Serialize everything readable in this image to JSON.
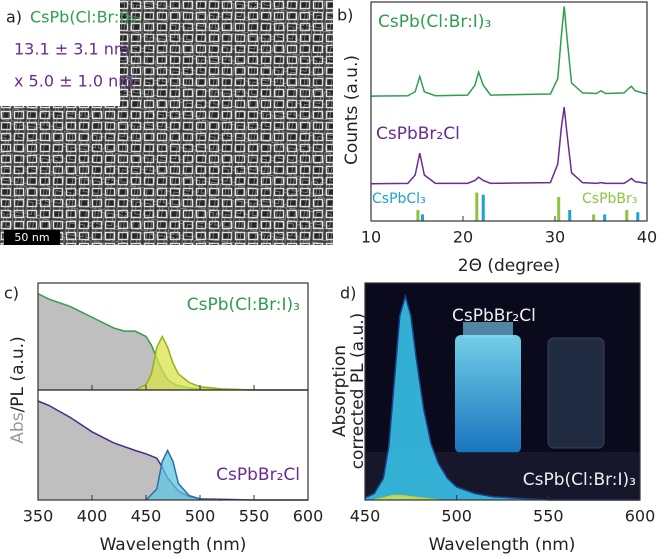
{
  "tem_image": {
    "panel_label": "a)",
    "composition": "CsPb(Cl:Br:I)₃",
    "size_length": "13.1 ± 3.1 nm",
    "size_width": "x 5.0 ± 1.0 nm",
    "scale_bar": "50 nm"
  },
  "chart_data": [
    {
      "type": "line",
      "panel_label": "b)",
      "xlabel": "2Θ (degree)",
      "ylabel": "Counts (a.u.)",
      "xlim": [
        10,
        40
      ],
      "xticks": [
        10,
        20,
        30,
        40
      ],
      "ylim": [
        0,
        10
      ],
      "series": [
        {
          "name": "CsPb(Cl:Br:I)₃",
          "color": "#2f9e4f",
          "x": [
            10,
            14,
            14.8,
            15.3,
            15.8,
            17,
            20.5,
            21.3,
            21.7,
            22.2,
            23,
            29.5,
            30.3,
            30.7,
            31,
            31.3,
            31.8,
            33,
            34.5,
            35,
            35.5,
            37.5,
            38,
            38.3,
            38.7,
            40
          ],
          "values": [
            5.7,
            5.72,
            5.9,
            6.6,
            5.9,
            5.72,
            5.75,
            6.2,
            6.8,
            6.2,
            5.75,
            5.8,
            6.5,
            8.5,
            9.8,
            8.4,
            6.3,
            5.85,
            5.82,
            5.95,
            5.82,
            5.85,
            6.05,
            6.15,
            5.95,
            5.8
          ]
        },
        {
          "name": "CsPbBr₂Cl",
          "color": "#6a2c91",
          "x": [
            10,
            14,
            14.8,
            15.3,
            15.8,
            17,
            20.5,
            21.3,
            21.7,
            22.2,
            23,
            29.5,
            30.3,
            30.7,
            31,
            31.3,
            31.8,
            33,
            34.5,
            35,
            35.5,
            37.5,
            38,
            38.3,
            38.7,
            40
          ],
          "values": [
            1.7,
            1.72,
            2.1,
            3.1,
            2.1,
            1.72,
            1.72,
            1.85,
            2.0,
            1.85,
            1.72,
            1.75,
            2.6,
            4.3,
            5.2,
            4.0,
            2.2,
            1.75,
            1.72,
            1.75,
            1.72,
            1.72,
            1.85,
            1.95,
            1.8,
            1.72
          ]
        }
      ],
      "reference_lines": [
        {
          "name": "CsPbCl₃",
          "color": "#1aa3d4",
          "x": [
            15.6,
            22.2,
            31.6,
            35.4,
            39.0
          ],
          "values": [
            0.3,
            1.2,
            0.5,
            0.3,
            0.4
          ]
        },
        {
          "name": "CsPbBr₃",
          "color": "#8cc43e",
          "x": [
            15.1,
            21.5,
            30.4,
            34.2,
            37.8
          ],
          "values": [
            0.5,
            1.3,
            1.1,
            0.3,
            0.5
          ]
        }
      ]
    },
    {
      "type": "area",
      "panel_label": "c)",
      "label": "CsPb(Cl:Br:I)₃",
      "label_color": "#2f9e4f",
      "ylabel": [
        "Abs",
        "/PL (a.u.)"
      ],
      "xlim": [
        350,
        600
      ],
      "ylim": [
        0,
        1
      ],
      "series": [
        {
          "color": "#2f9e4f",
          "fill": "#a9a9a9",
          "x": [
            350,
            360,
            380,
            400,
            420,
            430,
            440,
            450,
            455,
            460,
            465,
            470,
            475,
            480,
            490,
            500,
            550,
            600
          ],
          "values": [
            0.9,
            0.85,
            0.78,
            0.68,
            0.58,
            0.55,
            0.55,
            0.5,
            0.42,
            0.3,
            0.18,
            0.1,
            0.06,
            0.04,
            0.02,
            0.01,
            0,
            0
          ]
        },
        {
          "color": "#8fb31a",
          "fill": "#dbe34a",
          "x": [
            440,
            450,
            455,
            460,
            465,
            470,
            475,
            480,
            490,
            500,
            520,
            550
          ],
          "values": [
            0,
            0.05,
            0.15,
            0.4,
            0.5,
            0.4,
            0.25,
            0.15,
            0.07,
            0.03,
            0.01,
            0
          ]
        }
      ]
    },
    {
      "type": "area",
      "label": "CsPbBr₂Cl",
      "label_color": "#6a2c91",
      "xlabel": "Wavelength (nm)",
      "xlim": [
        350,
        600
      ],
      "xticks": [
        350,
        400,
        450,
        500,
        550,
        600
      ],
      "ylim": [
        0,
        1
      ],
      "series": [
        {
          "color": "#4b2a8c",
          "fill": "#a9a9a9",
          "x": [
            350,
            360,
            380,
            400,
            420,
            440,
            450,
            460,
            465,
            470,
            480,
            490,
            500,
            550,
            600
          ],
          "values": [
            0.9,
            0.86,
            0.75,
            0.62,
            0.52,
            0.45,
            0.42,
            0.38,
            0.3,
            0.2,
            0.08,
            0.03,
            0.01,
            0,
            0
          ]
        },
        {
          "color": "#2b6fa8",
          "fill": "#5fc4e0",
          "x": [
            450,
            460,
            465,
            470,
            475,
            480,
            490,
            500,
            520
          ],
          "values": [
            0,
            0.1,
            0.35,
            0.45,
            0.35,
            0.15,
            0.04,
            0.01,
            0
          ]
        }
      ]
    },
    {
      "type": "area",
      "panel_label": "d)",
      "xlabel": "Wavelength (nm)",
      "ylabel": [
        "Absorption",
        "corrected PL (a.u.)"
      ],
      "annotations": [
        "CsPbBr₂Cl",
        "CsPb(Cl:Br:I)₃"
      ],
      "xlim": [
        450,
        600
      ],
      "xticks": [
        450,
        500,
        550,
        600
      ],
      "ylim": [
        0,
        1
      ],
      "series": [
        {
          "color": "#1b3f8a",
          "fill": "#35b8dc",
          "x": [
            450,
            455,
            460,
            463,
            466,
            469,
            472,
            475,
            478,
            482,
            486,
            490,
            495,
            500,
            510,
            520,
            530,
            550,
            600
          ],
          "values": [
            0.01,
            0.03,
            0.1,
            0.25,
            0.55,
            0.85,
            0.94,
            0.85,
            0.65,
            0.42,
            0.26,
            0.17,
            0.1,
            0.06,
            0.03,
            0.015,
            0.01,
            0,
            0
          ]
        },
        {
          "color": "#c9d22a",
          "fill": "#e3e85a",
          "x": [
            455,
            460,
            465,
            470,
            475,
            480,
            490
          ],
          "values": [
            0,
            0.01,
            0.02,
            0.02,
            0.015,
            0.01,
            0
          ]
        }
      ]
    }
  ]
}
